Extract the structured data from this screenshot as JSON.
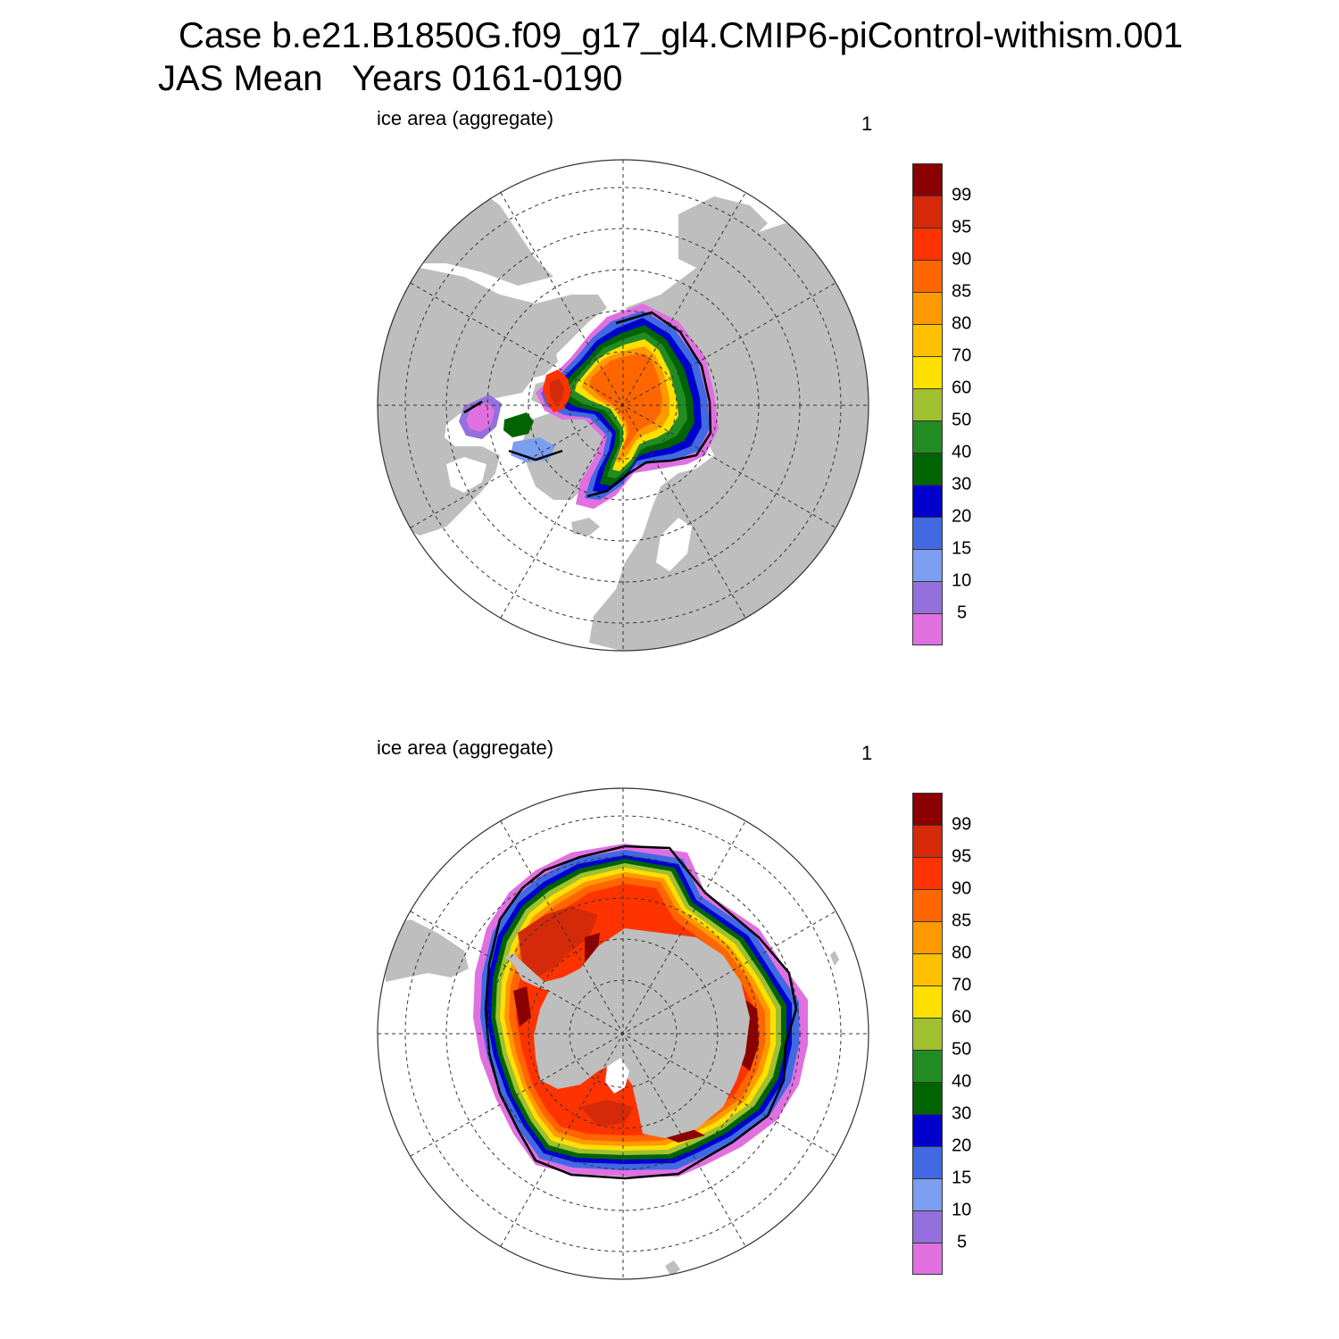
{
  "title": {
    "case_line": "Case b.e21.B1850G.f09_g17_gl4.CMIP6-piControl-withism.001",
    "period_line": "JAS Mean   Years 0161-0190"
  },
  "panels": [
    {
      "id": "north",
      "hemisphere": "Arctic",
      "label": "ice area  (aggregate)",
      "number": "1"
    },
    {
      "id": "south",
      "hemisphere": "Antarctic",
      "label": "ice area  (aggregate)",
      "number": "1"
    }
  ],
  "colorbar": {
    "labels": [
      "99",
      "95",
      "90",
      "85",
      "80",
      "70",
      "60",
      "50",
      "40",
      "30",
      "20",
      "15",
      "10",
      "5"
    ],
    "colors_top_to_bottom": [
      "#8b0000",
      "#d42a0a",
      "#ff3300",
      "#ff6600",
      "#ff9900",
      "#ffc000",
      "#ffe000",
      "#a0c030",
      "#228b22",
      "#006400",
      "#0000cd",
      "#4169e1",
      "#7b9ef0",
      "#9370db",
      "#e070e0"
    ]
  },
  "colors": {
    "land": "#bebebe",
    "ocean": "#ffffff",
    "grid": "#333333",
    "extent_line": "#000000"
  }
}
